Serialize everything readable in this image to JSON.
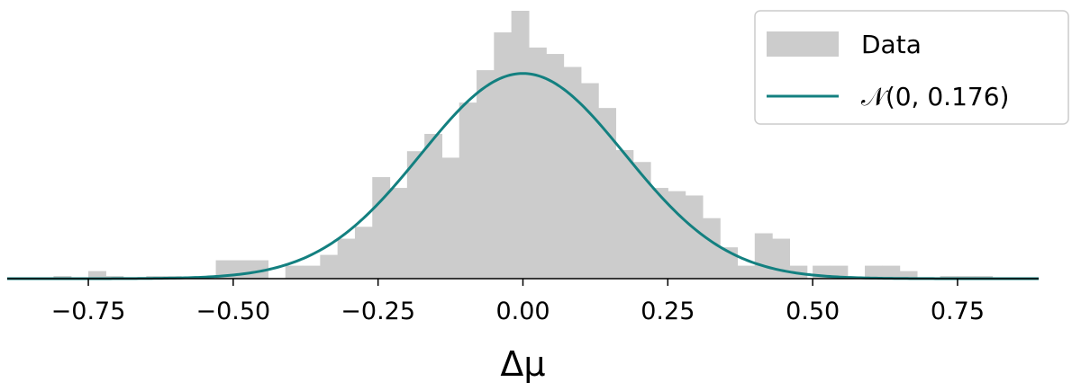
{
  "chart_data": {
    "type": "bar",
    "subtype": "histogram",
    "xlabel": "Δμ",
    "ylabel": "",
    "title": "",
    "xlim": [
      -0.89,
      0.89
    ],
    "ylim": [
      0,
      1.24
    ],
    "grid": false,
    "legend_position": "top-right",
    "x_ticks": [
      -0.75,
      -0.5,
      -0.25,
      0.0,
      0.25,
      0.5,
      0.75
    ],
    "x_tick_labels": [
      "−0.75",
      "−0.50",
      "−0.25",
      "0.00",
      "0.25",
      "0.50",
      "0.75"
    ],
    "bin_width": 0.03,
    "histogram": {
      "name": "Data",
      "color": "#cccccc",
      "bins": [
        {
          "x0": -0.81,
          "x1": -0.78,
          "value": 0.012
        },
        {
          "x0": -0.75,
          "x1": -0.72,
          "value": 0.035
        },
        {
          "x0": -0.72,
          "x1": -0.69,
          "value": 0.012
        },
        {
          "x0": -0.65,
          "x1": -0.62,
          "value": 0.012
        },
        {
          "x0": -0.62,
          "x1": -0.59,
          "value": 0.012
        },
        {
          "x0": -0.53,
          "x1": -0.5,
          "value": 0.085
        },
        {
          "x0": -0.5,
          "x1": -0.47,
          "value": 0.085
        },
        {
          "x0": -0.47,
          "x1": -0.44,
          "value": 0.085
        },
        {
          "x0": -0.41,
          "x1": -0.38,
          "value": 0.06
        },
        {
          "x0": -0.38,
          "x1": -0.35,
          "value": 0.06
        },
        {
          "x0": -0.35,
          "x1": -0.32,
          "value": 0.11
        },
        {
          "x0": -0.32,
          "x1": -0.29,
          "value": 0.185
        },
        {
          "x0": -0.29,
          "x1": -0.26,
          "value": 0.24
        },
        {
          "x0": -0.26,
          "x1": -0.23,
          "value": 0.47
        },
        {
          "x0": -0.23,
          "x1": -0.2,
          "value": 0.42
        },
        {
          "x0": -0.2,
          "x1": -0.17,
          "value": 0.59
        },
        {
          "x0": -0.17,
          "x1": -0.14,
          "value": 0.67
        },
        {
          "x0": -0.14,
          "x1": -0.11,
          "value": 0.56
        },
        {
          "x0": -0.11,
          "x1": -0.08,
          "value": 0.815
        },
        {
          "x0": -0.08,
          "x1": -0.05,
          "value": 0.965
        },
        {
          "x0": -0.05,
          "x1": -0.02,
          "value": 1.14
        },
        {
          "x0": -0.02,
          "x1": 0.01,
          "value": 1.24
        },
        {
          "x0": 0.01,
          "x1": 0.04,
          "value": 1.07
        },
        {
          "x0": 0.04,
          "x1": 0.07,
          "value": 1.04
        },
        {
          "x0": 0.07,
          "x1": 0.1,
          "value": 0.98
        },
        {
          "x0": 0.1,
          "x1": 0.13,
          "value": 0.905
        },
        {
          "x0": 0.13,
          "x1": 0.16,
          "value": 0.79
        },
        {
          "x0": 0.16,
          "x1": 0.19,
          "value": 0.595
        },
        {
          "x0": 0.19,
          "x1": 0.22,
          "value": 0.54
        },
        {
          "x0": 0.22,
          "x1": 0.25,
          "value": 0.42
        },
        {
          "x0": 0.25,
          "x1": 0.28,
          "value": 0.405
        },
        {
          "x0": 0.28,
          "x1": 0.31,
          "value": 0.385
        },
        {
          "x0": 0.31,
          "x1": 0.34,
          "value": 0.28
        },
        {
          "x0": 0.34,
          "x1": 0.37,
          "value": 0.145
        },
        {
          "x0": 0.37,
          "x1": 0.4,
          "value": 0.06
        },
        {
          "x0": 0.4,
          "x1": 0.43,
          "value": 0.21
        },
        {
          "x0": 0.43,
          "x1": 0.46,
          "value": 0.185
        },
        {
          "x0": 0.46,
          "x1": 0.49,
          "value": 0.06
        },
        {
          "x0": 0.5,
          "x1": 0.53,
          "value": 0.06
        },
        {
          "x0": 0.53,
          "x1": 0.56,
          "value": 0.06
        },
        {
          "x0": 0.59,
          "x1": 0.62,
          "value": 0.06
        },
        {
          "x0": 0.62,
          "x1": 0.65,
          "value": 0.06
        },
        {
          "x0": 0.65,
          "x1": 0.68,
          "value": 0.035
        },
        {
          "x0": 0.72,
          "x1": 0.75,
          "value": 0.012
        },
        {
          "x0": 0.75,
          "x1": 0.78,
          "value": 0.012
        },
        {
          "x0": 0.78,
          "x1": 0.81,
          "value": 0.012
        }
      ]
    },
    "fit_curve": {
      "name": "𝒩(0, 0.176)",
      "distribution": "normal",
      "mean": 0,
      "std": 0.176,
      "peak": 0.95,
      "color": "#138080"
    },
    "legend": [
      {
        "label": "Data",
        "kind": "patch",
        "color": "#cccccc"
      },
      {
        "label": "𝒩(0, 0.176)",
        "kind": "line",
        "color": "#138080"
      }
    ]
  }
}
